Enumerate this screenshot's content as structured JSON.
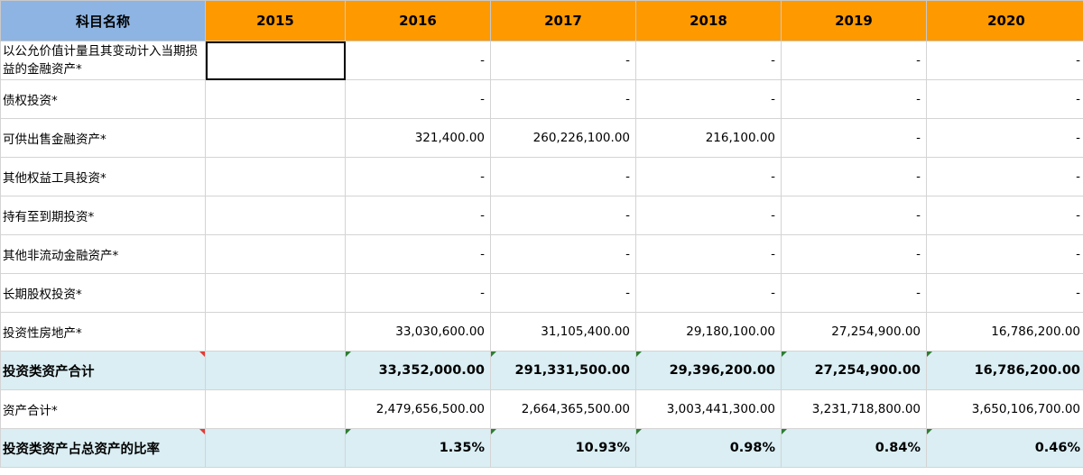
{
  "header": {
    "name_label": "科目名称",
    "years": [
      "2015",
      "2016",
      "2017",
      "2018",
      "2019",
      "2020"
    ]
  },
  "rows": [
    {
      "label": "以公允价值计量且其变动计入当期损益的金融资产*",
      "values": [
        "",
        "-",
        "-",
        "-",
        "-",
        "-"
      ]
    },
    {
      "label": "债权投资*",
      "values": [
        "",
        "-",
        "-",
        "-",
        "-",
        "-"
      ]
    },
    {
      "label": "可供出售金融资产*",
      "values": [
        "",
        "321,400.00",
        "260,226,100.00",
        "216,100.00",
        "-",
        "-"
      ]
    },
    {
      "label": "其他权益工具投资*",
      "values": [
        "",
        "-",
        "-",
        "-",
        "-",
        "-"
      ]
    },
    {
      "label": "持有至到期投资*",
      "values": [
        "",
        "-",
        "-",
        "-",
        "-",
        "-"
      ]
    },
    {
      "label": "其他非流动金融资产*",
      "values": [
        "",
        "-",
        "-",
        "-",
        "-",
        "-"
      ]
    },
    {
      "label": "长期股权投资*",
      "values": [
        "",
        "-",
        "-",
        "-",
        "-",
        "-"
      ]
    },
    {
      "label": "投资性房地产*",
      "values": [
        "",
        "33,030,600.00",
        "31,105,400.00",
        "29,180,100.00",
        "27,254,900.00",
        "16,786,200.00"
      ]
    },
    {
      "label": "投资类资产合计",
      "values": [
        "",
        "33,352,000.00",
        "291,331,500.00",
        "29,396,200.00",
        "27,254,900.00",
        "16,786,200.00"
      ]
    },
    {
      "label": "资产合计*",
      "values": [
        "",
        "2,479,656,500.00",
        "2,664,365,500.00",
        "3,003,441,300.00",
        "3,231,718,800.00",
        "3,650,106,700.00"
      ]
    },
    {
      "label": "投资类资产占总资产的比率",
      "values": [
        "",
        "1.35%",
        "10.93%",
        "0.98%",
        "0.84%",
        "0.46%"
      ]
    }
  ],
  "colors": {
    "year_header": "#ff9900",
    "name_header": "#8db4e2",
    "total_row": "#daeef3"
  }
}
